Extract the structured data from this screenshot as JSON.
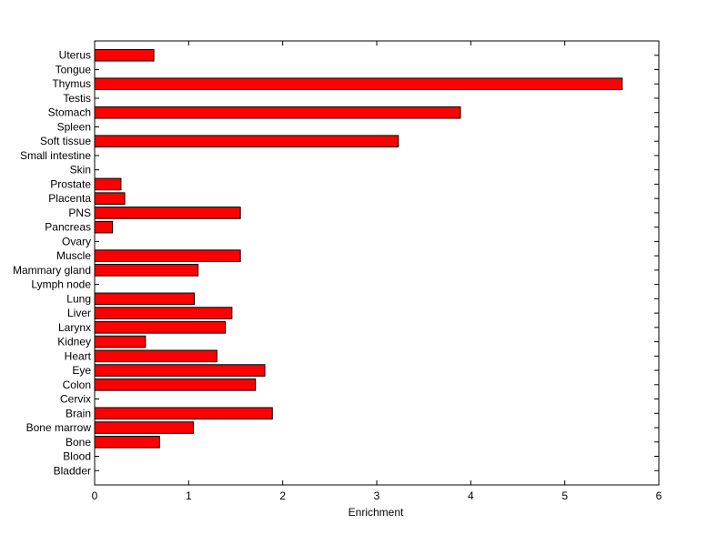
{
  "chart_data": {
    "type": "bar",
    "orientation": "horizontal",
    "title": "",
    "xlabel": "Enrichment",
    "ylabel": "",
    "xlim": [
      0,
      6
    ],
    "xticks": [
      0,
      1,
      2,
      3,
      4,
      5,
      6
    ],
    "grid": false,
    "legend": "none",
    "bar_color": "#ff0000",
    "bar_edge_color": "#000000",
    "categories": [
      "Uterus",
      "Tongue",
      "Thymus",
      "Testis",
      "Stomach",
      "Spleen",
      "Soft tissue",
      "Small intestine",
      "Skin",
      "Prostate",
      "Placenta",
      "PNS",
      "Pancreas",
      "Ovary",
      "Muscle",
      "Mammary gland",
      "Lymph node",
      "Lung",
      "Liver",
      "Larynx",
      "Kidney",
      "Heart",
      "Eye",
      "Colon",
      "Cervix",
      "Brain",
      "Bone marrow",
      "Bone",
      "Blood",
      "Bladder"
    ],
    "values": [
      0.63,
      0,
      5.61,
      0,
      3.89,
      0,
      3.23,
      0,
      0,
      0.28,
      0.32,
      1.55,
      0.19,
      0,
      1.55,
      1.1,
      0,
      1.06,
      1.46,
      1.39,
      0.54,
      1.3,
      1.81,
      1.71,
      0,
      1.89,
      1.05,
      0.69,
      0,
      0
    ]
  }
}
